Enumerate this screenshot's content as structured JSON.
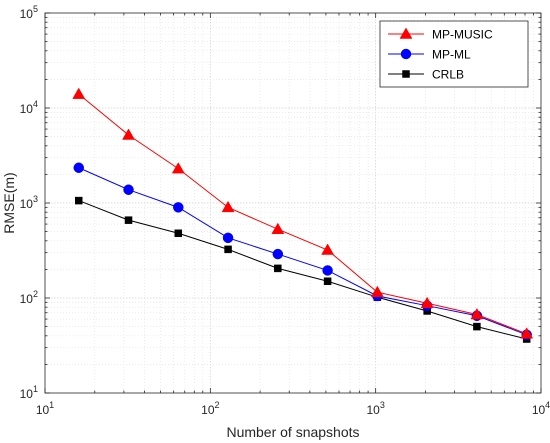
{
  "chart_data": {
    "type": "line",
    "title": "",
    "xlabel": "Number of snapshots",
    "ylabel": "RMSE(m)",
    "x_scale": "log",
    "y_scale": "log",
    "xlim": [
      10,
      10000
    ],
    "ylim": [
      10,
      100000
    ],
    "grid": true,
    "legend_position": "top-right",
    "x_ticks": [
      {
        "base": "10",
        "exp": "1",
        "value": 10
      },
      {
        "base": "10",
        "exp": "2",
        "value": 100
      },
      {
        "base": "10",
        "exp": "3",
        "value": 1000
      },
      {
        "base": "10",
        "exp": "4",
        "value": 10000
      }
    ],
    "y_ticks": [
      {
        "base": "10",
        "exp": "1",
        "value": 10
      },
      {
        "base": "10",
        "exp": "2",
        "value": 100
      },
      {
        "base": "10",
        "exp": "3",
        "value": 1000
      },
      {
        "base": "10",
        "exp": "4",
        "value": 10000
      },
      {
        "base": "10",
        "exp": "5",
        "value": 100000
      }
    ],
    "x": [
      16,
      32,
      64,
      128,
      256,
      512,
      1024,
      2048,
      4096,
      8192
    ],
    "series": [
      {
        "name": "MP-MUSIC",
        "color": "#ff0000",
        "marker": "triangle",
        "values": [
          14000,
          5200,
          2300,
          900,
          530,
          320,
          115,
          88,
          67,
          42
        ]
      },
      {
        "name": "MP-ML",
        "color": "#0000ff",
        "marker": "circle",
        "values": [
          2350,
          1380,
          900,
          430,
          290,
          195,
          105,
          83,
          65,
          41
        ]
      },
      {
        "name": "CRLB",
        "color": "#000000",
        "marker": "square",
        "values": [
          1060,
          660,
          480,
          325,
          205,
          150,
          102,
          73,
          50,
          37
        ]
      }
    ]
  }
}
